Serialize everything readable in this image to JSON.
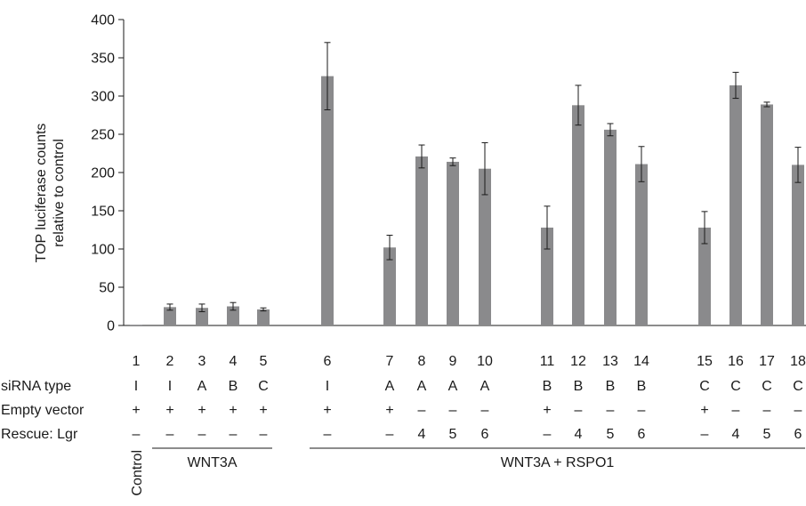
{
  "chart_data": {
    "type": "bar",
    "ylabel_lines": [
      "TOP luciferase counts",
      "relative to control"
    ],
    "ylim": [
      0,
      400
    ],
    "yticks": [
      0,
      50,
      100,
      150,
      200,
      250,
      300,
      350,
      400
    ],
    "grid": false,
    "bar_color": "#8a8a8c",
    "categories": [
      "1",
      "2",
      "3",
      "4",
      "5",
      "6",
      "7",
      "8",
      "9",
      "10",
      "11",
      "12",
      "13",
      "14",
      "15",
      "16",
      "17",
      "18"
    ],
    "values": [
      1,
      24,
      23,
      25,
      21,
      326,
      102,
      221,
      214,
      205,
      128,
      288,
      256,
      211,
      128,
      314,
      289,
      210
    ],
    "errors": [
      0,
      4,
      5,
      5,
      2,
      44,
      16,
      15,
      5,
      34,
      28,
      26,
      8,
      23,
      21,
      17,
      3,
      23
    ],
    "row_labels": [
      "siRNA type",
      "Empty vector",
      "Rescue: Lgr"
    ],
    "rows": {
      "sirna": [
        "I",
        "I",
        "A",
        "B",
        "C",
        "I",
        "A",
        "A",
        "A",
        "A",
        "B",
        "B",
        "B",
        "B",
        "C",
        "C",
        "C",
        "C"
      ],
      "empty_vector": [
        "+",
        "+",
        "+",
        "+",
        "+",
        "+",
        "+",
        "–",
        "–",
        "–",
        "+",
        "–",
        "–",
        "–",
        "+",
        "–",
        "–",
        "–"
      ],
      "rescue_lgr": [
        "–",
        "–",
        "–",
        "–",
        "–",
        "–",
        "–",
        "4",
        "5",
        "6",
        "–",
        "4",
        "5",
        "6",
        "–",
        "4",
        "5",
        "6"
      ]
    },
    "groups": [
      {
        "label": "Control",
        "from": 0,
        "to": 0,
        "vertical": true
      },
      {
        "label": "WNT3A",
        "from": 1,
        "to": 4,
        "vertical": false
      },
      {
        "label": "WNT3A + RSPO1",
        "from": 5,
        "to": 17,
        "vertical": false
      }
    ]
  }
}
